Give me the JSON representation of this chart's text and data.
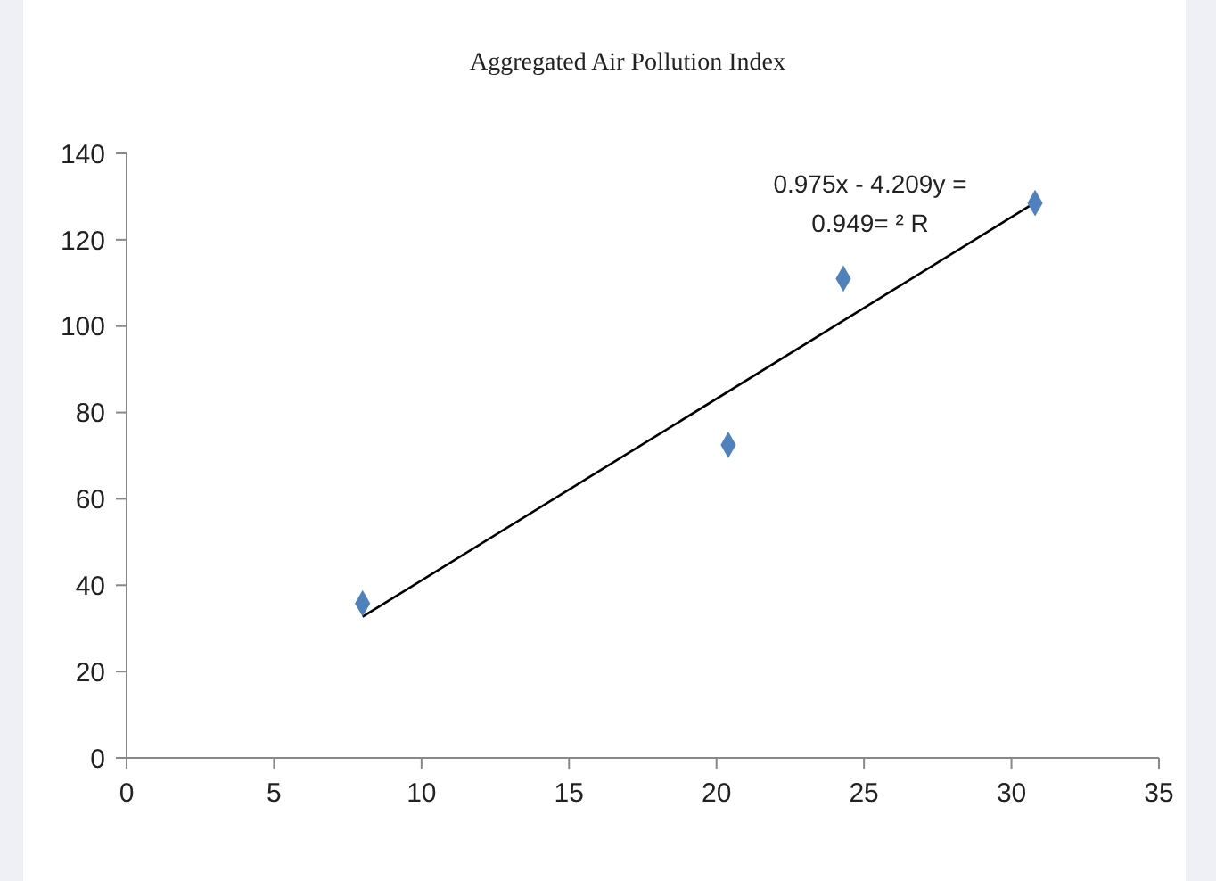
{
  "chart_data": {
    "type": "scatter",
    "title": "Aggregated Air Pollution Index",
    "x": [
      8,
      20.4,
      24.3,
      30.8
    ],
    "series": [
      {
        "color": "#4f81bd",
        "values": [
          35.8,
          72.5,
          111,
          128.5
        ],
        "marker": "diamond"
      },
      {
        "type": "line",
        "color": "#000000",
        "x": [
          8,
          30.8
        ],
        "values": [
          32.7,
          128.6
        ],
        "marker": "none"
      }
    ],
    "xlim": [
      0,
      35
    ],
    "xticks": [
      0,
      5,
      10,
      15,
      20,
      25,
      30,
      35
    ],
    "ylim": [
      0,
      140
    ],
    "yticks": [
      0,
      20,
      40,
      60,
      80,
      100,
      120,
      140
    ],
    "annotations": [
      "0.975x - 4.209y =",
      "0.949= ² R"
    ],
    "grid": false
  }
}
